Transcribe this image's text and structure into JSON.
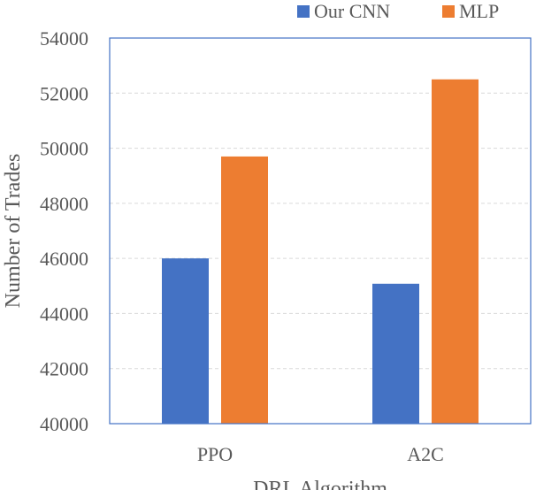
{
  "chart_data": {
    "type": "bar",
    "title": "",
    "xlabel": "DRL Algorithm",
    "ylabel": "Number of Trades",
    "categories": [
      "PPO",
      "A2C"
    ],
    "series": [
      {
        "name": "Our CNN",
        "color": "#4472C4",
        "values": [
          46000,
          45080
        ]
      },
      {
        "name": "MLP",
        "color": "#ED7D31",
        "values": [
          49700,
          52500
        ]
      }
    ],
    "ylim": [
      40000,
      54000
    ],
    "yticks": [
      40000,
      42000,
      44000,
      46000,
      48000,
      50000,
      52000,
      54000
    ],
    "grid": true,
    "legend_position": "top-right"
  }
}
